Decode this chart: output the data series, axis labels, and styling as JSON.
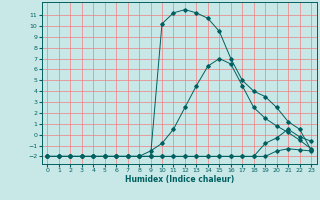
{
  "xlabel": "Humidex (Indice chaleur)",
  "ylabel": "",
  "background_color": "#c8e8e8",
  "grid_color": "#f08080",
  "line_color": "#006060",
  "xlim": [
    -0.5,
    23.5
  ],
  "ylim": [
    -2.7,
    12.2
  ],
  "xticks": [
    0,
    1,
    2,
    3,
    4,
    5,
    6,
    7,
    8,
    9,
    10,
    11,
    12,
    13,
    14,
    15,
    16,
    17,
    18,
    19,
    20,
    21,
    22,
    23
  ],
  "yticks": [
    -2,
    -1,
    0,
    1,
    2,
    3,
    4,
    5,
    6,
    7,
    8,
    9,
    10,
    11
  ],
  "series": [
    [
      -2,
      -2,
      -2,
      -2,
      -2,
      -2,
      -2,
      -2,
      -2,
      -2,
      -2,
      -2,
      -2,
      -2,
      -2,
      -2,
      -2,
      -2,
      -2,
      -2,
      -1.5,
      -1.3,
      -1.4,
      -1.5
    ],
    [
      -2,
      -2,
      -2,
      -2,
      -2,
      -2,
      -2,
      -2,
      -2,
      -2,
      -2,
      -2,
      -2,
      -2,
      -2,
      -2,
      -2,
      -2,
      -2,
      -0.8,
      -0.3,
      0.5,
      -0.2,
      -0.6
    ],
    [
      -2,
      -2,
      -2,
      -2,
      -2,
      -2,
      -2,
      -2,
      -2,
      -1.5,
      -0.8,
      0.5,
      2.5,
      4.5,
      6.3,
      7.0,
      6.5,
      4.5,
      2.5,
      1.5,
      0.8,
      0.2,
      -0.5,
      -1.3
    ],
    [
      -2,
      -2,
      -2,
      -2,
      -2,
      -2,
      -2,
      -2,
      -2,
      -2,
      10.2,
      11.2,
      11.5,
      11.2,
      10.7,
      9.5,
      7.0,
      5.0,
      4.0,
      3.5,
      2.5,
      1.2,
      0.5,
      -1.4
    ]
  ]
}
